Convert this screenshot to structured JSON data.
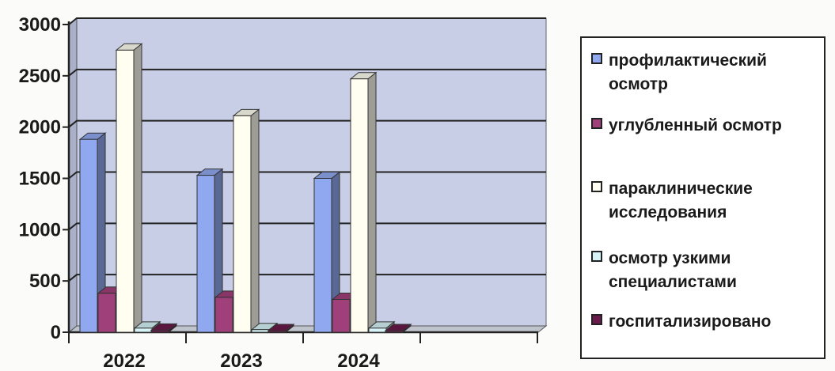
{
  "chart_data": {
    "type": "bar",
    "categories": [
      "2022",
      "2023",
      "2024"
    ],
    "ylim": [
      0,
      3000
    ],
    "yticks": [
      0,
      500,
      1000,
      1500,
      2000,
      2500,
      3000
    ],
    "grid": true,
    "legend_position": "right",
    "series": [
      {
        "name": "профилактический осмотр",
        "values": [
          1880,
          1530,
          1500
        ],
        "color": "#8fa8f0"
      },
      {
        "name": "углубленный осмотр",
        "values": [
          380,
          340,
          320
        ],
        "color": "#a0407a"
      },
      {
        "name": "параклинические исследования",
        "values": [
          2750,
          2110,
          2470
        ],
        "color": "#fffef0"
      },
      {
        "name": "осмотр узкими специалистами",
        "values": [
          40,
          25,
          40
        ],
        "color": "#d6f4f8"
      },
      {
        "name": "госпитализировано",
        "values": [
          20,
          15,
          15
        ],
        "color": "#6a1a4a"
      }
    ]
  }
}
